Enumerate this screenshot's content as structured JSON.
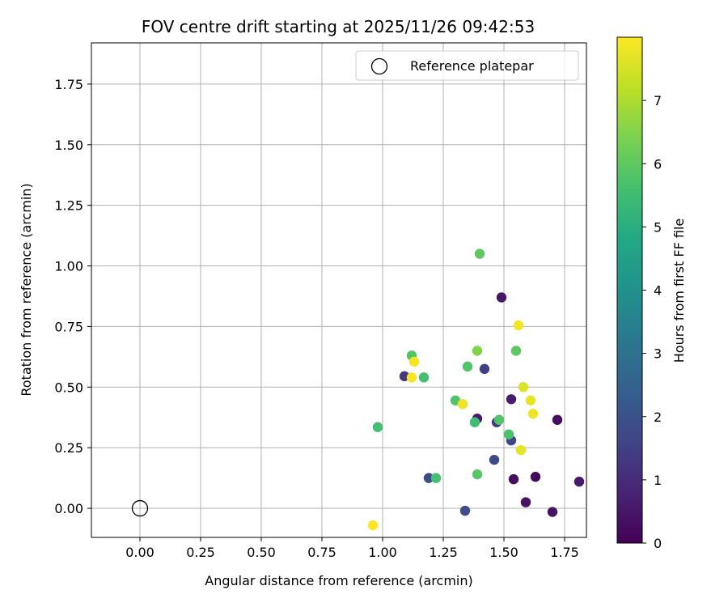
{
  "chart_data": {
    "type": "scatter",
    "title": "FOV centre drift starting at 2025/11/26 09:42:53",
    "xlabel": "Angular distance from reference (arcmin)",
    "ylabel": "Rotation from reference (arcmin)",
    "xlim": [
      -0.2,
      1.84
    ],
    "ylim": [
      -0.12,
      1.92
    ],
    "xticks": [
      0.0,
      0.25,
      0.5,
      0.75,
      1.0,
      1.25,
      1.5,
      1.75
    ],
    "xtick_labels": [
      "0.00",
      "0.25",
      "0.50",
      "0.75",
      "1.00",
      "1.25",
      "1.50",
      "1.75"
    ],
    "yticks": [
      0.0,
      0.25,
      0.5,
      0.75,
      1.0,
      1.25,
      1.5,
      1.75
    ],
    "ytick_labels": [
      "0.00",
      "0.25",
      "0.50",
      "0.75",
      "1.00",
      "1.25",
      "1.50",
      "1.75"
    ],
    "grid": true,
    "legend": {
      "placement": "top-right",
      "entries": [
        "Reference platepar"
      ]
    },
    "reference_point": {
      "x": 0.0,
      "y": 0.0,
      "label": "Reference platepar"
    },
    "colorbar": {
      "label": "Hours from first FF file",
      "colormap": "viridis",
      "range": [
        0,
        8
      ],
      "ticks": [
        0,
        1,
        2,
        3,
        4,
        5,
        6,
        7
      ],
      "tick_labels": [
        "0",
        "1",
        "2",
        "3",
        "4",
        "5",
        "6",
        "7"
      ]
    },
    "points": [
      {
        "x": 1.49,
        "y": 0.87,
        "c": 0.5
      },
      {
        "x": 1.53,
        "y": 0.45,
        "c": 0.6
      },
      {
        "x": 1.39,
        "y": 0.37,
        "c": 0.6
      },
      {
        "x": 1.72,
        "y": 0.365,
        "c": 0.3
      },
      {
        "x": 1.54,
        "y": 0.12,
        "c": 0.3
      },
      {
        "x": 1.59,
        "y": 0.025,
        "c": 0.4
      },
      {
        "x": 1.63,
        "y": 0.13,
        "c": 0.2
      },
      {
        "x": 1.7,
        "y": -0.015,
        "c": 0.4
      },
      {
        "x": 1.81,
        "y": 0.11,
        "c": 0.5
      },
      {
        "x": 1.09,
        "y": 0.545,
        "c": 1.3
      },
      {
        "x": 1.42,
        "y": 0.575,
        "c": 1.5
      },
      {
        "x": 1.47,
        "y": 0.355,
        "c": 1.4
      },
      {
        "x": 1.53,
        "y": 0.28,
        "c": 1.7
      },
      {
        "x": 1.46,
        "y": 0.2,
        "c": 1.8
      },
      {
        "x": 1.19,
        "y": 0.125,
        "c": 1.8
      },
      {
        "x": 1.34,
        "y": -0.01,
        "c": 1.9
      },
      {
        "x": 1.4,
        "y": 1.05,
        "c": 6.0
      },
      {
        "x": 1.12,
        "y": 0.63,
        "c": 5.8
      },
      {
        "x": 1.17,
        "y": 0.54,
        "c": 5.6
      },
      {
        "x": 1.35,
        "y": 0.585,
        "c": 5.8
      },
      {
        "x": 1.55,
        "y": 0.65,
        "c": 6.0
      },
      {
        "x": 1.3,
        "y": 0.445,
        "c": 5.8
      },
      {
        "x": 1.38,
        "y": 0.355,
        "c": 5.5
      },
      {
        "x": 1.48,
        "y": 0.365,
        "c": 5.8
      },
      {
        "x": 1.52,
        "y": 0.305,
        "c": 5.7
      },
      {
        "x": 1.22,
        "y": 0.125,
        "c": 5.6
      },
      {
        "x": 1.39,
        "y": 0.14,
        "c": 5.9
      },
      {
        "x": 0.98,
        "y": 0.335,
        "c": 5.6
      },
      {
        "x": 1.39,
        "y": 0.65,
        "c": 6.5
      },
      {
        "x": 1.56,
        "y": 0.755,
        "c": 7.9
      },
      {
        "x": 1.13,
        "y": 0.605,
        "c": 7.9
      },
      {
        "x": 1.12,
        "y": 0.54,
        "c": 7.9
      },
      {
        "x": 1.58,
        "y": 0.5,
        "c": 7.6
      },
      {
        "x": 1.61,
        "y": 0.445,
        "c": 7.7
      },
      {
        "x": 1.62,
        "y": 0.39,
        "c": 7.8
      },
      {
        "x": 1.33,
        "y": 0.43,
        "c": 7.8
      },
      {
        "x": 1.57,
        "y": 0.24,
        "c": 7.7
      },
      {
        "x": 0.96,
        "y": -0.07,
        "c": 8.0
      }
    ]
  }
}
